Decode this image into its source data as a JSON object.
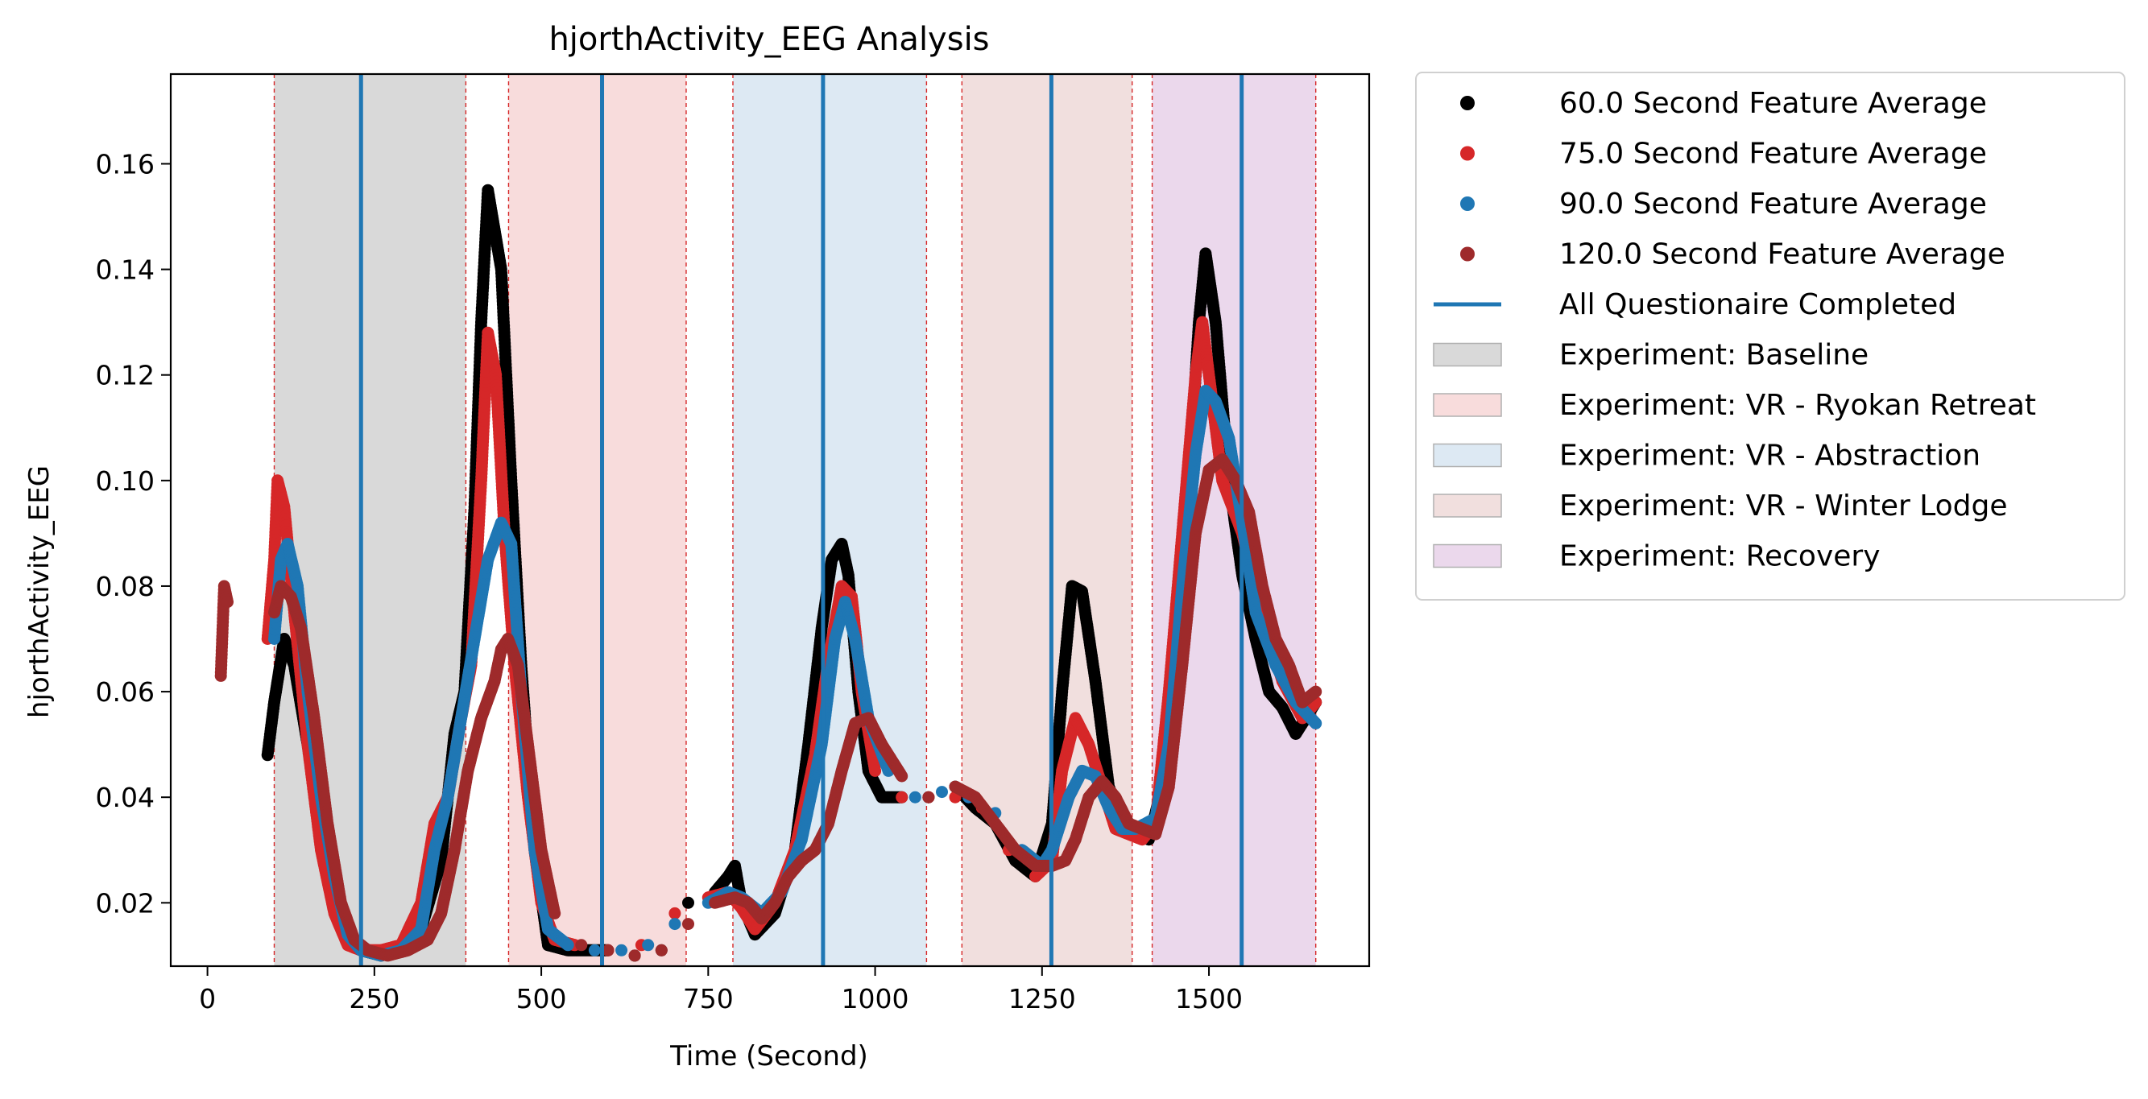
{
  "chart_data": {
    "type": "scatter",
    "title": "hjorthActivity_EEG Analysis",
    "xlabel": "Time (Second)",
    "ylabel": "hjorthActivity_EEG",
    "xlim": [
      -55,
      1740
    ],
    "ylim": [
      0.008,
      0.177
    ],
    "x_ticks": [
      0,
      250,
      500,
      750,
      1000,
      1250,
      1500
    ],
    "x_tick_labels": [
      "0",
      "250",
      "500",
      "750",
      "1000",
      "1250",
      "1500"
    ],
    "y_ticks": [
      0.02,
      0.04,
      0.06,
      0.08,
      0.1,
      0.12,
      0.14,
      0.16
    ],
    "y_tick_labels": [
      "0.02",
      "0.04",
      "0.06",
      "0.08",
      "0.10",
      "0.12",
      "0.14",
      "0.16"
    ],
    "grid": false,
    "legend_position": "outside-right",
    "experiments": [
      {
        "name": "Experiment: Baseline",
        "start": 100,
        "end": 387,
        "color": "#d9d9d9"
      },
      {
        "name": "Experiment: VR - Ryokan Retreat",
        "start": 451,
        "end": 717,
        "color": "#f8dcdc"
      },
      {
        "name": "Experiment: VR - Abstraction",
        "start": 787,
        "end": 1077,
        "color": "#dde9f3"
      },
      {
        "name": "Experiment: VR - Winter Lodge",
        "start": 1130,
        "end": 1385,
        "color": "#f1dfde"
      },
      {
        "name": "Experiment: Recovery",
        "start": 1415,
        "end": 1660,
        "color": "#ebd8ec"
      }
    ],
    "questionnaire_lines": {
      "name": "All Questionaire Completed",
      "color": "#1f77b4",
      "x": [
        230,
        591,
        922,
        1264,
        1549
      ]
    },
    "series": [
      {
        "name": "60.0 Second Feature Average",
        "color": "#000000",
        "x": [
          90,
          100,
          115,
          130,
          150,
          170,
          190,
          210,
          230,
          260,
          290,
          320,
          350,
          370,
          385,
          400,
          410,
          420,
          440,
          455,
          470,
          490,
          510,
          540,
          570,
          600,
          640,
          680,
          720,
          760,
          780,
          790,
          800,
          820,
          850,
          880,
          900,
          920,
          935,
          950,
          960,
          975,
          990,
          1010,
          1040,
          1080,
          1120,
          1150,
          1180,
          1210,
          1240,
          1265,
          1280,
          1295,
          1310,
          1330,
          1350,
          1370,
          1390,
          1410,
          1430,
          1450,
          1470,
          1485,
          1495,
          1510,
          1530,
          1550,
          1570,
          1590,
          1610,
          1630,
          1650,
          1660
        ],
        "values": [
          0.048,
          0.058,
          0.07,
          0.065,
          0.05,
          0.032,
          0.02,
          0.013,
          0.011,
          0.01,
          0.011,
          0.015,
          0.028,
          0.052,
          0.06,
          0.095,
          0.13,
          0.155,
          0.14,
          0.1,
          0.065,
          0.03,
          0.012,
          0.011,
          0.011,
          0.011,
          0.01,
          0.011,
          0.02,
          0.022,
          0.025,
          0.027,
          0.02,
          0.014,
          0.018,
          0.03,
          0.05,
          0.072,
          0.085,
          0.088,
          0.082,
          0.06,
          0.045,
          0.04,
          0.04,
          0.04,
          0.042,
          0.038,
          0.035,
          0.028,
          0.025,
          0.035,
          0.06,
          0.08,
          0.079,
          0.062,
          0.042,
          0.035,
          0.034,
          0.032,
          0.042,
          0.07,
          0.1,
          0.13,
          0.143,
          0.13,
          0.1,
          0.082,
          0.07,
          0.06,
          0.057,
          0.052,
          0.056,
          0.058
        ]
      },
      {
        "name": "75.0 Second Feature Average",
        "color": "#d62728",
        "x": [
          90,
          100,
          105,
          115,
          130,
          150,
          170,
          190,
          210,
          230,
          260,
          290,
          320,
          340,
          360,
          380,
          395,
          410,
          420,
          432,
          445,
          460,
          480,
          500,
          520,
          550,
          600,
          650,
          700,
          750,
          780,
          800,
          820,
          850,
          880,
          910,
          930,
          950,
          965,
          980,
          1000,
          1040,
          1080,
          1120,
          1160,
          1200,
          1240,
          1265,
          1280,
          1300,
          1320,
          1340,
          1360,
          1380,
          1400,
          1420,
          1440,
          1460,
          1480,
          1490,
          1500,
          1520,
          1550,
          1580,
          1610,
          1640,
          1660
        ],
        "values": [
          0.07,
          0.085,
          0.1,
          0.095,
          0.075,
          0.05,
          0.03,
          0.018,
          0.012,
          0.011,
          0.011,
          0.012,
          0.02,
          0.035,
          0.04,
          0.055,
          0.065,
          0.1,
          0.128,
          0.12,
          0.09,
          0.065,
          0.04,
          0.02,
          0.013,
          0.012,
          0.011,
          0.012,
          0.018,
          0.021,
          0.022,
          0.019,
          0.015,
          0.02,
          0.03,
          0.048,
          0.066,
          0.08,
          0.078,
          0.06,
          0.045,
          0.04,
          0.04,
          0.04,
          0.038,
          0.03,
          0.025,
          0.028,
          0.045,
          0.055,
          0.05,
          0.042,
          0.034,
          0.033,
          0.032,
          0.035,
          0.06,
          0.09,
          0.12,
          0.13,
          0.12,
          0.1,
          0.09,
          0.075,
          0.062,
          0.055,
          0.058
        ]
      },
      {
        "name": "90.0 Second Feature Average",
        "color": "#1f77b4",
        "x": [
          100,
          110,
          120,
          135,
          150,
          170,
          190,
          210,
          230,
          260,
          290,
          320,
          340,
          360,
          380,
          400,
          420,
          440,
          455,
          470,
          490,
          510,
          540,
          580,
          620,
          660,
          700,
          750,
          780,
          800,
          830,
          860,
          890,
          920,
          940,
          955,
          970,
          990,
          1020,
          1060,
          1100,
          1140,
          1180,
          1220,
          1250,
          1265,
          1290,
          1310,
          1330,
          1350,
          1370,
          1390,
          1420,
          1440,
          1460,
          1480,
          1495,
          1510,
          1530,
          1550,
          1570,
          1600,
          1630,
          1660
        ],
        "values": [
          0.07,
          0.085,
          0.088,
          0.08,
          0.06,
          0.04,
          0.025,
          0.014,
          0.011,
          0.01,
          0.011,
          0.015,
          0.03,
          0.04,
          0.055,
          0.07,
          0.085,
          0.092,
          0.088,
          0.06,
          0.03,
          0.015,
          0.012,
          0.011,
          0.011,
          0.012,
          0.016,
          0.02,
          0.022,
          0.021,
          0.018,
          0.022,
          0.032,
          0.05,
          0.07,
          0.077,
          0.07,
          0.055,
          0.045,
          0.04,
          0.041,
          0.04,
          0.037,
          0.03,
          0.027,
          0.03,
          0.04,
          0.045,
          0.044,
          0.038,
          0.034,
          0.034,
          0.036,
          0.05,
          0.08,
          0.105,
          0.117,
          0.115,
          0.108,
          0.092,
          0.075,
          0.065,
          0.058,
          0.054
        ]
      },
      {
        "name": "120.0 Second Feature Average",
        "color": "#9e2a2b",
        "x": [
          20,
          25,
          30,
          100,
          110,
          125,
          140,
          160,
          180,
          200,
          220,
          240,
          270,
          300,
          330,
          350,
          370,
          390,
          410,
          430,
          440,
          450,
          465,
          480,
          500,
          520,
          560,
          600,
          640,
          680,
          720,
          760,
          790,
          810,
          830,
          850,
          870,
          890,
          910,
          930,
          950,
          970,
          990,
          1010,
          1040,
          1080,
          1120,
          1150,
          1180,
          1210,
          1240,
          1265,
          1285,
          1300,
          1320,
          1340,
          1360,
          1380,
          1400,
          1420,
          1440,
          1460,
          1480,
          1500,
          1520,
          1540,
          1560,
          1580,
          1600,
          1620,
          1640,
          1660
        ],
        "values": [
          0.063,
          0.08,
          0.077,
          0.075,
          0.08,
          0.078,
          0.072,
          0.055,
          0.035,
          0.02,
          0.013,
          0.011,
          0.01,
          0.011,
          0.013,
          0.018,
          0.03,
          0.045,
          0.055,
          0.062,
          0.068,
          0.07,
          0.065,
          0.05,
          0.03,
          0.018,
          0.012,
          0.011,
          0.01,
          0.011,
          0.016,
          0.02,
          0.021,
          0.02,
          0.017,
          0.02,
          0.025,
          0.028,
          0.03,
          0.035,
          0.045,
          0.054,
          0.055,
          0.05,
          0.044,
          0.04,
          0.042,
          0.04,
          0.035,
          0.03,
          0.027,
          0.027,
          0.028,
          0.032,
          0.04,
          0.043,
          0.04,
          0.035,
          0.034,
          0.033,
          0.042,
          0.065,
          0.09,
          0.102,
          0.104,
          0.1,
          0.094,
          0.08,
          0.07,
          0.065,
          0.058,
          0.06
        ]
      }
    ],
    "legend": [
      {
        "label": "60.0 Second Feature Average",
        "kind": "marker",
        "color": "#000000"
      },
      {
        "label": "75.0 Second Feature Average",
        "kind": "marker",
        "color": "#d62728"
      },
      {
        "label": "90.0 Second Feature Average",
        "kind": "marker",
        "color": "#1f77b4"
      },
      {
        "label": "120.0 Second Feature Average",
        "kind": "marker",
        "color": "#9e2a2b"
      },
      {
        "label": "All Questionaire Completed",
        "kind": "line",
        "color": "#1f77b4"
      },
      {
        "label": "Experiment: Baseline",
        "kind": "patch",
        "color": "#d9d9d9"
      },
      {
        "label": "Experiment: VR - Ryokan Retreat",
        "kind": "patch",
        "color": "#f8dcdc"
      },
      {
        "label": "Experiment: VR - Abstraction",
        "kind": "patch",
        "color": "#dde9f3"
      },
      {
        "label": "Experiment: VR - Winter Lodge",
        "kind": "patch",
        "color": "#f1dfde"
      },
      {
        "label": "Experiment: Recovery",
        "kind": "patch",
        "color": "#ebd8ec"
      }
    ]
  }
}
